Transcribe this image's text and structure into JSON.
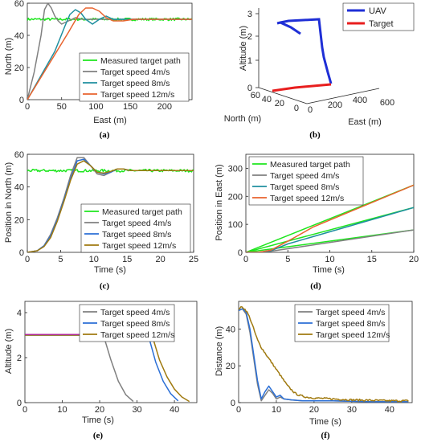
{
  "figure": {
    "captions": [
      "(a)",
      "(b)",
      "(c)",
      "(d)",
      "(e)",
      "(f)"
    ]
  },
  "colors": {
    "measured": "#1ee61e",
    "speed4": "#808080",
    "speed8": "#2b6fd6",
    "speed12": "#a07a10",
    "orange": "#e8632e",
    "teal": "#1f8f9f",
    "uav": "#1f2fd6",
    "target": "#e81e1e"
  },
  "chart_data": [
    {
      "id": "a",
      "type": "line",
      "xlabel": "East (m)",
      "ylabel": "North (m)",
      "xlim": [
        0,
        240
      ],
      "ylim": [
        0,
        60
      ],
      "xticks": [
        0,
        50,
        100,
        150,
        200
      ],
      "yticks": [
        0,
        20,
        40,
        60
      ],
      "legend_position": "bottom-right",
      "series": [
        {
          "name": "Measured target path",
          "color": "#1ee61e",
          "noise": 0.8,
          "x": [
            0,
            240
          ],
          "y": [
            50,
            50
          ]
        },
        {
          "name": "Target speed 4m/s",
          "color": "#808080",
          "x": [
            0,
            10,
            20,
            25,
            30,
            35,
            40,
            45,
            50,
            60,
            70,
            80,
            100,
            240
          ],
          "y": [
            0,
            17,
            40,
            56,
            60,
            57,
            52,
            49,
            47,
            49,
            51,
            50,
            50,
            50
          ]
        },
        {
          "name": "Target speed 8m/s",
          "color": "#1f8f9f",
          "x": [
            0,
            20,
            40,
            55,
            62,
            70,
            78,
            85,
            95,
            105,
            115,
            125,
            140,
            240
          ],
          "y": [
            0,
            15,
            30,
            46,
            53,
            56,
            54,
            50,
            47,
            50,
            52,
            50,
            50,
            50
          ]
        },
        {
          "name": "Target speed 12m/s",
          "color": "#e8632e",
          "x": [
            0,
            20,
            40,
            60,
            75,
            85,
            95,
            105,
            115,
            125,
            140,
            155,
            170,
            240
          ],
          "y": [
            0,
            14,
            28,
            42,
            53,
            57,
            57,
            55,
            51,
            49,
            49,
            50,
            50,
            50
          ]
        }
      ]
    },
    {
      "id": "b",
      "type": "line3d",
      "xlabel": "East (m)",
      "ylabel": "North (m)",
      "zlabel": "Altitude (m)",
      "xticks": [
        0,
        200,
        400,
        600
      ],
      "yticks": [
        0,
        20,
        40,
        60
      ],
      "zticks": [
        0,
        1,
        2,
        3
      ],
      "legend_position": "top-right",
      "series": [
        {
          "name": "UAV",
          "color": "#1f2fd6"
        },
        {
          "name": "Target",
          "color": "#e81e1e"
        }
      ]
    },
    {
      "id": "c",
      "type": "line",
      "xlabel": "Time (s)",
      "ylabel": "Position in North (m)",
      "xlim": [
        0,
        25
      ],
      "ylim": [
        0,
        60
      ],
      "xticks": [
        0,
        5,
        10,
        15,
        20,
        25
      ],
      "yticks": [
        0,
        20,
        40,
        60
      ],
      "legend_position": "bottom-right",
      "series": [
        {
          "name": "Measured target path",
          "color": "#1ee61e",
          "noise": 0.8,
          "x": [
            0,
            25
          ],
          "y": [
            50,
            50
          ]
        },
        {
          "name": "Target speed 4m/s",
          "color": "#808080",
          "x": [
            0,
            1.5,
            2.5,
            3.5,
            4.5,
            5.5,
            6.5,
            7.5,
            8.5,
            9.5,
            10.5,
            11.5,
            12.5,
            13.5,
            14.5,
            15.5,
            17,
            25
          ],
          "y": [
            0,
            1,
            4,
            11,
            21,
            33,
            47,
            58,
            58,
            53,
            48,
            47,
            49,
            51,
            51,
            50,
            50,
            50
          ]
        },
        {
          "name": "Target speed 8m/s",
          "color": "#2b6fd6",
          "x": [
            0,
            1.5,
            2.5,
            3.5,
            4.5,
            5.5,
            6.5,
            7.5,
            8.5,
            9.5,
            10.5,
            11.5,
            12.5,
            13.5,
            14.5,
            15.5,
            17,
            25
          ],
          "y": [
            0,
            1,
            4,
            10,
            20,
            32,
            45,
            56,
            57,
            53,
            49,
            48,
            49,
            51,
            51,
            50,
            50,
            50
          ]
        },
        {
          "name": "Target speed 12m/s",
          "color": "#a07a10",
          "x": [
            0,
            1.5,
            2.5,
            3.5,
            4.5,
            5.5,
            6.5,
            7.5,
            8.5,
            9.5,
            10.5,
            11.5,
            12.5,
            13.5,
            14.5,
            15.5,
            17,
            25
          ],
          "y": [
            0,
            1,
            3.5,
            9,
            19,
            31,
            44,
            54,
            56,
            53,
            49,
            48.5,
            49.5,
            51,
            51,
            50,
            50,
            50
          ]
        }
      ]
    },
    {
      "id": "d",
      "type": "line",
      "xlabel": "Time (s)",
      "ylabel": "Position in East (m)",
      "xlim": [
        0,
        20
      ],
      "ylim": [
        0,
        350
      ],
      "xticks": [
        0,
        5,
        10,
        15,
        20
      ],
      "yticks": [
        0,
        100,
        200,
        300
      ],
      "legend_position": "top-left",
      "series": [
        {
          "name": "Measured target path",
          "color": "#1ee61e",
          "x": [
            0,
            20
          ],
          "y": [
            0,
            240
          ]
        },
        {
          "name": "Measured target path",
          "color": "#1ee61e",
          "legend": false,
          "x": [
            0,
            20
          ],
          "y": [
            0,
            160
          ]
        },
        {
          "name": "Measured target path",
          "color": "#1ee61e",
          "legend": false,
          "x": [
            0,
            20
          ],
          "y": [
            0,
            80
          ]
        },
        {
          "name": "Target speed 4m/s",
          "color": "#808080",
          "x": [
            0,
            1.5,
            3,
            20
          ],
          "y": [
            0,
            0,
            4,
            80
          ]
        },
        {
          "name": "Target speed 8m/s",
          "color": "#1f8f9f",
          "x": [
            0,
            1.5,
            3,
            5,
            20
          ],
          "y": [
            0,
            0,
            6,
            30,
            160
          ]
        },
        {
          "name": "Target speed 12m/s",
          "color": "#e8632e",
          "x": [
            0,
            1.5,
            3,
            5,
            8,
            20
          ],
          "y": [
            0,
            0,
            8,
            40,
            90,
            240
          ]
        }
      ]
    },
    {
      "id": "e",
      "type": "line",
      "xlabel": "Time (s)",
      "ylabel": "Altitude (m)",
      "xlim": [
        0,
        46
      ],
      "ylim": [
        0,
        4.5
      ],
      "xticks": [
        0,
        10,
        20,
        30,
        40
      ],
      "yticks": [
        0,
        2,
        4
      ],
      "legend_position": "top-right",
      "series": [
        {
          "name": "Target speed 4m/s",
          "color": "#808080",
          "x": [
            0,
            21,
            23,
            25,
            27,
            29
          ],
          "y": [
            3,
            3,
            1.9,
            0.95,
            0.35,
            0.05
          ]
        },
        {
          "name": "Target speed 8m/s",
          "color": "#2b6fd6",
          "x": [
            0,
            33,
            35,
            37,
            39,
            41
          ],
          "y": [
            3,
            3,
            1.8,
            0.95,
            0.4,
            0.08
          ]
        },
        {
          "name": "Target speed 12m/s",
          "color": "#a07a10",
          "x": [
            0,
            34,
            36,
            38,
            40,
            42,
            44
          ],
          "y": [
            3,
            3,
            1.9,
            1.15,
            0.6,
            0.25,
            0.05
          ]
        },
        {
          "name": "Target speed 12m/s",
          "color": "#b02898",
          "legend": false,
          "x": [
            0,
            34
          ],
          "y": [
            3.03,
            3.03
          ]
        }
      ]
    },
    {
      "id": "f",
      "type": "line",
      "xlabel": "Time (s)",
      "ylabel": "Distance (m)",
      "xlim": [
        0,
        46
      ],
      "ylim": [
        0,
        55
      ],
      "xticks": [
        0,
        10,
        20,
        30,
        40
      ],
      "yticks": [
        0,
        20,
        40
      ],
      "legend_position": "top-right",
      "series": [
        {
          "name": "Target speed 4m/s",
          "color": "#808080",
          "x": [
            0,
            1,
            2,
            3,
            4,
            5,
            6,
            7,
            8,
            9,
            10,
            11,
            12,
            14,
            17,
            25,
            35,
            45
          ],
          "y": [
            50,
            51,
            48,
            38,
            24,
            10,
            1,
            4,
            7,
            5,
            2,
            3,
            2,
            1.5,
            1,
            1,
            0.5,
            0.5
          ]
        },
        {
          "name": "Target speed 8m/s",
          "color": "#2b6fd6",
          "x": [
            0,
            1,
            2,
            3,
            4,
            5,
            6,
            7,
            8,
            9,
            10,
            11,
            12,
            14,
            17,
            25,
            35,
            45
          ],
          "y": [
            50,
            51,
            49,
            40,
            26,
            12,
            2,
            6,
            9,
            6,
            3,
            4,
            2,
            1.5,
            1,
            1,
            0.5,
            0.5
          ]
        },
        {
          "name": "Target speed 12m/s",
          "color": "#a07a10",
          "noise": 0.5,
          "x": [
            0,
            1,
            2,
            3,
            4,
            5,
            6,
            7,
            8,
            9,
            10,
            11,
            12,
            13,
            14,
            15,
            16,
            18,
            20,
            25,
            30,
            40,
            45
          ],
          "y": [
            51,
            52,
            50,
            46,
            40,
            34,
            30,
            27,
            24,
            21,
            18,
            15,
            12,
            9,
            7,
            5,
            4,
            3,
            2.5,
            2,
            1.5,
            1,
            1
          ]
        }
      ]
    }
  ]
}
